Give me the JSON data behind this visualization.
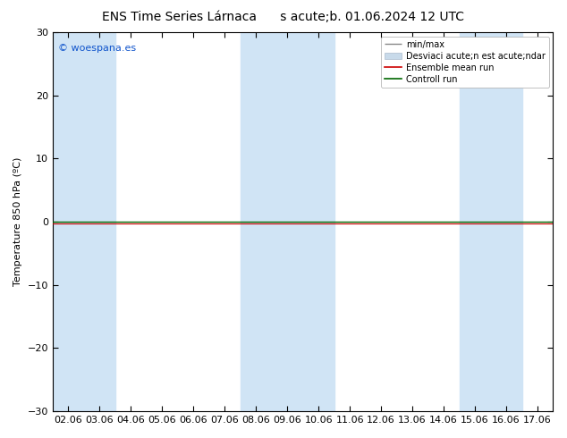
{
  "title_left": "ENS Time Series Lárnaca",
  "title_right": "s acute;b. 01.06.2024 12 UTC",
  "ylabel": "Temperature 850 hPa (ºC)",
  "ylim": [
    -30,
    30
  ],
  "yticks": [
    -30,
    -20,
    -10,
    0,
    10,
    20,
    30
  ],
  "xlabel_dates": [
    "02.06",
    "03.06",
    "04.06",
    "05.06",
    "06.06",
    "07.06",
    "08.06",
    "09.06",
    "10.06",
    "11.06",
    "12.06",
    "13.06",
    "14.06",
    "15.06",
    "16.06",
    "17.06"
  ],
  "bg_color": "#ffffff",
  "plot_bg_color": "#ffffff",
  "band_color": "#d0e4f5",
  "watermark": "© woespana.es",
  "watermark_color": "#1155cc",
  "zero_line_color": "#005500",
  "ensemble_mean_color": "#cc0000",
  "controll_run_color": "#006600",
  "min_max_color": "#888888",
  "desv_color": "#c8daea",
  "title_fontsize": 10,
  "axis_fontsize": 8,
  "tick_fontsize": 8,
  "legend_fontsize": 7
}
